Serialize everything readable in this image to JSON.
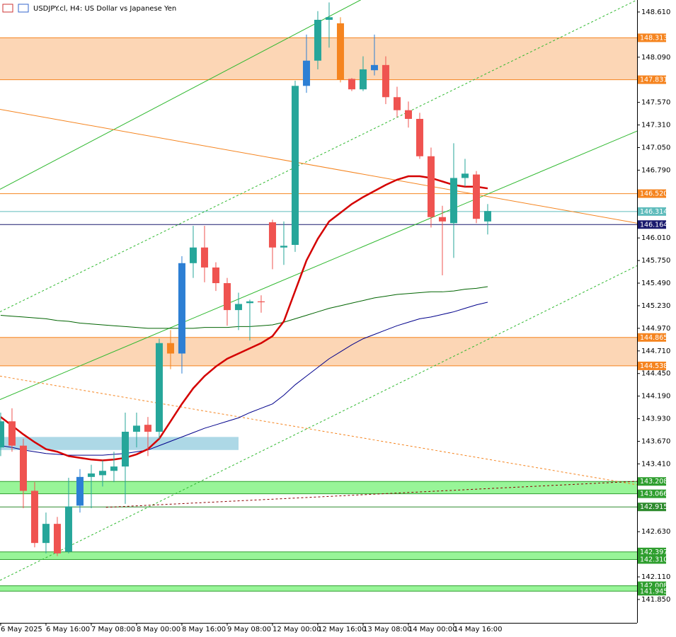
{
  "chart_data": {
    "type": "candlestick",
    "title": "USDJPY.cl, H4:  US Dollar vs Japanese Yen",
    "categories": [
      "6 May 2025",
      null,
      null,
      null,
      "6 May 16:00",
      null,
      null,
      null,
      "7 May 08:00",
      null,
      null,
      null,
      "8 May 00:00",
      null,
      null,
      null,
      "8 May 16:00",
      null,
      null,
      null,
      "9 May 08:00",
      null,
      null,
      null,
      "12 May 00:00",
      null,
      null,
      null,
      "12 May 16:00",
      null,
      null,
      null,
      "13 May 08:00",
      null,
      null,
      null,
      "14 May 00:00",
      null,
      null,
      null,
      "14 May 16:00",
      null,
      null,
      null
    ],
    "open": [
      143.6,
      143.9,
      143.62,
      143.1,
      142.5,
      142.72,
      142.4,
      142.93,
      143.26,
      143.28,
      143.33,
      143.38,
      143.78,
      143.86,
      143.78,
      144.8,
      144.68,
      145.72,
      145.9,
      145.67,
      145.49,
      145.18,
      145.26,
      145.28,
      146.19,
      145.9,
      145.93,
      147.76,
      148.05,
      148.52,
      148.48,
      147.84,
      147.72,
      147.94,
      148.0,
      147.63,
      147.48,
      147.38,
      146.95,
      146.25,
      146.18,
      146.7,
      146.74,
      146.2
    ],
    "high": [
      144.0,
      144.05,
      143.7,
      143.2,
      142.85,
      142.8,
      143.25,
      143.35,
      143.4,
      143.45,
      143.55,
      144.0,
      144.0,
      143.95,
      144.85,
      144.95,
      145.8,
      146.15,
      146.15,
      145.73,
      145.55,
      145.38,
      145.3,
      145.35,
      146.22,
      146.2,
      147.82,
      148.35,
      148.62,
      148.72,
      148.55,
      147.85,
      148.1,
      148.35,
      148.1,
      147.75,
      147.58,
      147.45,
      147.05,
      146.38,
      147.1,
      146.92,
      146.78,
      146.4
    ],
    "low": [
      143.5,
      143.55,
      142.9,
      142.45,
      142.38,
      142.35,
      142.38,
      142.85,
      142.9,
      143.15,
      143.2,
      142.95,
      143.6,
      143.5,
      143.7,
      144.5,
      144.45,
      145.55,
      145.5,
      145.4,
      145.0,
      144.95,
      144.83,
      145.15,
      145.65,
      145.7,
      145.85,
      147.68,
      147.95,
      148.2,
      147.8,
      147.7,
      147.7,
      147.88,
      147.55,
      147.4,
      147.28,
      146.92,
      146.13,
      145.58,
      145.78,
      146.6,
      146.18,
      146.05
    ],
    "close": [
      143.9,
      143.62,
      143.1,
      142.5,
      142.72,
      142.38,
      142.92,
      143.26,
      143.3,
      143.33,
      143.38,
      143.78,
      143.85,
      143.78,
      144.8,
      144.68,
      145.72,
      145.9,
      145.67,
      145.49,
      145.18,
      145.25,
      145.28,
      145.27,
      145.9,
      145.92,
      147.76,
      148.05,
      148.52,
      148.55,
      147.83,
      147.72,
      147.95,
      148.0,
      147.63,
      147.48,
      147.38,
      146.95,
      146.25,
      146.2,
      146.7,
      146.75,
      146.23,
      146.32
    ],
    "colors": [
      "#26a69a",
      "#ef5350",
      "#ef5350",
      "#ef5350",
      "#26a69a",
      "#ef5350",
      "#26a69a",
      "#2d7fd4",
      "#26a69a",
      "#26a69a",
      "#26a69a",
      "#26a69a",
      "#26a69a",
      "#ef5350",
      "#26a69a",
      "#f5841f",
      "#2d7fd4",
      "#26a69a",
      "#ef5350",
      "#ef5350",
      "#ef5350",
      "#26a69a",
      "#26a69a",
      "#ef5350",
      "#ef5350",
      "#26a69a",
      "#26a69a",
      "#2d7fd4",
      "#26a69a",
      "#26a69a",
      "#f5841f",
      "#ef5350",
      "#26a69a",
      "#2d7fd4",
      "#ef5350",
      "#ef5350",
      "#ef5350",
      "#ef5350",
      "#ef5350",
      "#ef5350",
      "#26a69a",
      "#26a69a",
      "#ef5350",
      "#26a69a"
    ],
    "lines": [
      {
        "color": "#006400",
        "values": [
          145.12,
          145.11,
          145.1,
          145.09,
          145.08,
          145.06,
          145.05,
          145.03,
          145.02,
          145.01,
          145.0,
          144.99,
          144.98,
          144.97,
          144.97,
          144.97,
          144.97,
          144.97,
          144.98,
          144.98,
          144.98,
          144.99,
          144.99,
          145.0,
          145.01,
          145.04,
          145.08,
          145.12,
          145.16,
          145.2,
          145.23,
          145.26,
          145.29,
          145.32,
          145.34,
          145.36,
          145.37,
          145.38,
          145.39,
          145.39,
          145.4,
          145.42,
          145.43,
          145.45
        ]
      },
      {
        "color": "#00008b",
        "values": [
          143.62,
          143.6,
          143.57,
          143.55,
          143.53,
          143.52,
          143.51,
          143.51,
          143.51,
          143.51,
          143.52,
          143.53,
          143.55,
          143.57,
          143.62,
          143.67,
          143.72,
          143.77,
          143.82,
          143.86,
          143.9,
          143.94,
          144.0,
          144.05,
          144.1,
          144.2,
          144.32,
          144.42,
          144.52,
          144.62,
          144.7,
          144.78,
          144.85,
          144.9,
          144.95,
          145.0,
          145.04,
          145.08,
          145.1,
          145.13,
          145.16,
          145.2,
          145.24,
          145.27
        ]
      },
      {
        "color": "#d40000",
        "values": [
          143.95,
          143.85,
          143.75,
          143.66,
          143.58,
          143.55,
          143.5,
          143.48,
          143.46,
          143.45,
          143.46,
          143.48,
          143.52,
          143.58,
          143.7,
          143.9,
          144.1,
          144.28,
          144.42,
          144.53,
          144.62,
          144.68,
          144.74,
          144.8,
          144.88,
          145.05,
          145.4,
          145.75,
          146.0,
          146.2,
          146.3,
          146.4,
          146.48,
          146.55,
          146.62,
          146.68,
          146.72,
          146.72,
          146.7,
          146.66,
          146.62,
          146.6,
          146.6,
          146.58
        ]
      }
    ],
    "trendlines": [
      {
        "x": [
          -0.06,
          31.8
        ],
        "y": [
          146.57,
          148.75
        ],
        "color": "#2eb82e",
        "dashed": false
      },
      {
        "x": [
          -0.06,
          56.19
        ],
        "y": [
          144.15,
          147.24
        ],
        "color": "#2eb82e",
        "dashed": false
      },
      {
        "x": [
          -0.06,
          56.19
        ],
        "y": [
          145.16,
          148.75
        ],
        "color": "#2eb82e",
        "dashed": true
      },
      {
        "x": [
          -0.06,
          56.19
        ],
        "y": [
          142.07,
          145.69
        ],
        "color": "#2eb82e",
        "dashed": true
      },
      {
        "x": [
          -0.06,
          56.19
        ],
        "y": [
          147.49,
          146.18
        ],
        "color": "#f5841f",
        "dashed": false
      },
      {
        "x": [
          -0.06,
          56.19
        ],
        "y": [
          144.42,
          143.17
        ],
        "color": "#f5841f",
        "dashed": true
      },
      {
        "x": [
          9.3,
          56.19
        ],
        "y": [
          142.91,
          143.21
        ],
        "color": "#8b0000",
        "dashed": true
      }
    ],
    "box": {
      "x": [
        -0.06,
        21
      ],
      "y": [
        143.57,
        143.72
      ],
      "color": "#add8e6"
    },
    "zones": [
      {
        "fill": "#fcd6b5",
        "color": "#f5841f",
        "top": {
          "value": 148.313
        },
        "bottom": {
          "value": 147.831
        }
      },
      {
        "fill": "#fcd6b5",
        "color": "#f5841f",
        "top": {
          "value": 144.865
        },
        "bottom": {
          "value": 144.538
        }
      },
      {
        "fill": "#98f598",
        "color": "#2e9e2e",
        "top": {
          "value": 143.208
        },
        "bottom": {
          "value": 143.066
        }
      },
      {
        "fill": "#98f598",
        "color": "#2e9e2e",
        "top": {
          "value": 142.397
        },
        "bottom": {
          "value": 142.31,
          "label": "142.310"
        }
      },
      {
        "fill": "#98f598",
        "color": "#2e9e2e",
        "top": {
          "value": 142.008
        },
        "bottom": {
          "value": 141.945
        }
      }
    ],
    "levels": [
      {
        "value": 146.52,
        "label": "146.520",
        "color": "#f5841f"
      },
      {
        "value": 146.314,
        "color": "#5fbcbc"
      },
      {
        "value": 146.164,
        "color": "#1a1a6e"
      },
      {
        "value": 142.915,
        "color": "#2e8b2e"
      }
    ],
    "xlim": [
      -0.06,
      56.19
    ],
    "ylim": [
      141.581,
      148.748
    ],
    "yticks": [
      {
        "value": 148.61,
        "label": "148.610"
      },
      {
        "value": 148.09,
        "label": "148.090"
      },
      {
        "value": 147.57,
        "label": "147.570"
      },
      {
        "value": 147.31,
        "label": "147.310"
      },
      {
        "value": 147.05,
        "label": "147.050"
      },
      {
        "value": 146.79,
        "label": "146.790"
      },
      {
        "value": 146.01,
        "label": "146.010"
      },
      {
        "value": 145.75,
        "label": "145.750"
      },
      {
        "value": 145.49,
        "label": "145.490"
      },
      {
        "value": 145.23,
        "label": "145.230"
      },
      {
        "value": 144.97,
        "label": "144.970"
      },
      {
        "value": 144.71,
        "label": "144.710"
      },
      {
        "value": 144.45,
        "label": "144.450"
      },
      {
        "value": 144.19,
        "label": "144.190"
      },
      {
        "value": 143.93,
        "label": "143.930"
      },
      {
        "value": 143.67,
        "label": "143.670"
      },
      {
        "value": 143.41,
        "label": "143.410"
      },
      {
        "value": 142.63,
        "label": "142.630"
      },
      {
        "value": 142.11,
        "label": "142.110"
      },
      {
        "value": 141.85,
        "label": "141.850"
      }
    ]
  }
}
